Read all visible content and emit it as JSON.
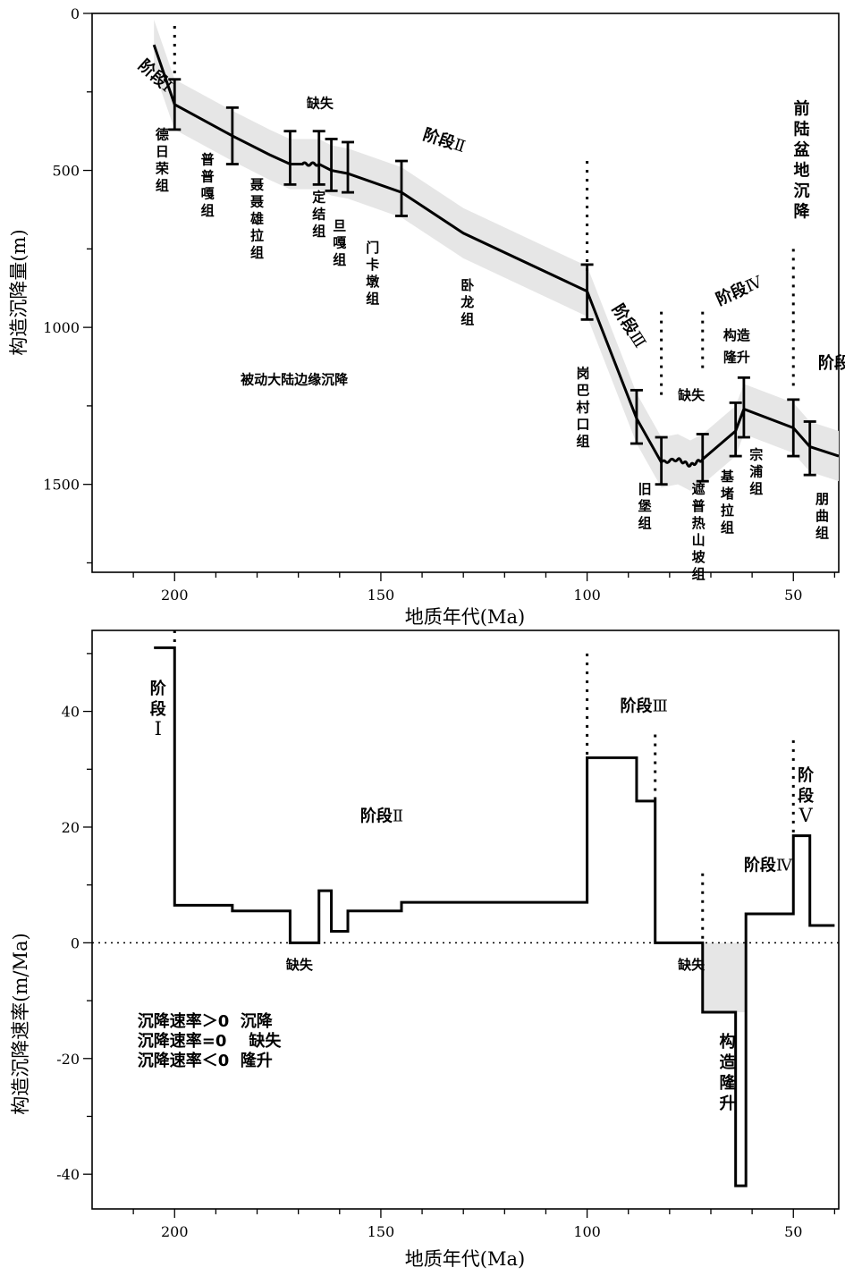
{
  "chart_data": [
    {
      "type": "line",
      "xlabel": "地质年代(Ma)",
      "ylabel": "构造沉降量(m)",
      "xlim": [
        220,
        39
      ],
      "ylim": [
        1780,
        0
      ],
      "x_ticks": [
        200,
        150,
        100,
        50
      ],
      "y_ticks": [
        0,
        500,
        1000,
        1500
      ],
      "series": [
        {
          "x": [
            205,
            200,
            186,
            177,
            172,
            169,
            165,
            162,
            158,
            145,
            130,
            100,
            88,
            82,
            78,
            75,
            72,
            64,
            62,
            50,
            46,
            39
          ],
          "y": [
            100,
            290,
            390,
            450,
            480,
            480,
            480,
            500,
            510,
            570,
            700,
            885,
            1290,
            1430,
            1420,
            1440,
            1420,
            1330,
            1260,
            1320,
            1380,
            1410
          ]
        }
      ],
      "error_bars": [
        {
          "x": 200,
          "low": 210,
          "high": 370
        },
        {
          "x": 186,
          "low": 300,
          "high": 480
        },
        {
          "x": 172,
          "low": 375,
          "high": 545
        },
        {
          "x": 165,
          "low": 375,
          "high": 545
        },
        {
          "x": 162,
          "low": 400,
          "high": 565
        },
        {
          "x": 158,
          "low": 410,
          "high": 570
        },
        {
          "x": 145,
          "low": 470,
          "high": 645
        },
        {
          "x": 100,
          "low": 800,
          "high": 975
        },
        {
          "x": 88,
          "low": 1200,
          "high": 1370
        },
        {
          "x": 82,
          "low": 1350,
          "high": 1500
        },
        {
          "x": 72,
          "low": 1340,
          "high": 1490
        },
        {
          "x": 64,
          "low": 1240,
          "high": 1410
        },
        {
          "x": 62,
          "low": 1160,
          "high": 1350
        },
        {
          "x": 50,
          "low": 1230,
          "high": 1410
        },
        {
          "x": 46,
          "low": 1300,
          "high": 1470
        }
      ],
      "dotted_lines": [
        {
          "x": 200,
          "y_top": 40,
          "y_bottom": 200
        },
        {
          "x": 100,
          "y_top": 470,
          "y_bottom": 830
        },
        {
          "x": 82,
          "y_top": 950,
          "y_bottom": 1230
        },
        {
          "x": 72,
          "y_top": 950,
          "y_bottom": 1130
        },
        {
          "x": 50,
          "y_top": 750,
          "y_bottom": 1200
        }
      ],
      "annotations": [
        {
          "text": "阶段Ⅰ",
          "x": 209,
          "y": 170,
          "rotate": 42
        },
        {
          "text": "阶段Ⅱ",
          "x": 140,
          "y": 400,
          "rotate": 18
        },
        {
          "text": "阶段Ⅲ",
          "x": 94,
          "y": 940,
          "rotate": 58
        },
        {
          "text": "阶段Ⅳ",
          "x": 68,
          "y": 930,
          "rotate": -24
        },
        {
          "text": "阶段Ⅴ",
          "x": 44,
          "y": 1130,
          "rotate": 0
        },
        {
          "text": "缺失",
          "x": 168,
          "y": 300,
          "rotate": 0
        },
        {
          "text": "缺失",
          "x": 78,
          "y": 1230,
          "rotate": 0
        },
        {
          "text": "被动大陆边缘沉降",
          "x": 184,
          "y": 1180,
          "rotate": 0
        },
        {
          "text": "构造",
          "x": 67,
          "y": 1040,
          "rotate": 0
        },
        {
          "text": "隆升",
          "x": 67,
          "y": 1110,
          "rotate": 0
        }
      ],
      "vertical_labels": [
        {
          "text": "德日荣组",
          "x": 203,
          "y": 400
        },
        {
          "text": "普普嘎组",
          "x": 192,
          "y": 480
        },
        {
          "text": "聂聂雄拉组",
          "x": 180,
          "y": 560
        },
        {
          "text": "定结组",
          "x": 165,
          "y": 600
        },
        {
          "text": "旦嘎组",
          "x": 160,
          "y": 690
        },
        {
          "text": "门卡墩组",
          "x": 152,
          "y": 760
        },
        {
          "text": "卧龙组",
          "x": 129,
          "y": 880
        },
        {
          "text": "岗巴村口组",
          "x": 101,
          "y": 1160
        },
        {
          "text": "旧堡组",
          "x": 86,
          "y": 1530
        },
        {
          "text": "遮普热山坡组",
          "x": 73,
          "y": 1530
        },
        {
          "text": "基堵拉组",
          "x": 66,
          "y": 1490
        },
        {
          "text": "宗浦组",
          "x": 59,
          "y": 1420
        },
        {
          "text": "朋曲组",
          "x": 43,
          "y": 1560
        },
        {
          "text": "前陆盆地沉降",
          "x": 48,
          "y": 320
        }
      ]
    },
    {
      "type": "line",
      "xlabel": "地质年代(Ma)",
      "ylabel": "构造沉降速率(m/Ma)",
      "xlim": [
        220,
        39
      ],
      "ylim": [
        -46,
        54
      ],
      "x_ticks": [
        200,
        150,
        100,
        50
      ],
      "y_ticks": [
        -40,
        -20,
        0,
        20,
        40
      ],
      "series": [
        {
          "x": [
            205,
            200,
            200,
            186,
            186,
            172,
            172,
            165,
            165,
            162,
            162,
            158,
            158,
            145,
            145,
            100,
            100,
            88,
            88,
            83.5,
            83.5,
            72,
            72,
            64,
            64,
            61.5,
            61.5,
            50,
            50,
            46,
            46,
            40
          ],
          "y": [
            51,
            51,
            6.5,
            6.5,
            5.5,
            5.5,
            0,
            0,
            9,
            9,
            2,
            2,
            5.5,
            5.5,
            7,
            7,
            32,
            32,
            24.5,
            24.5,
            0,
            0,
            -12,
            -12,
            -42,
            -42,
            5,
            5,
            18.5,
            18.5,
            3,
            3
          ]
        }
      ],
      "shaded_region": {
        "x_from": 72,
        "x_to": 61.5,
        "y_top": 0,
        "y_bottom": -12
      },
      "dotted_lines": [
        {
          "x": 200,
          "y_top": 54,
          "y_bottom": 51
        },
        {
          "x": 100,
          "y_top": 50,
          "y_bottom": 32
        },
        {
          "x": 83.5,
          "y_top": 36,
          "y_bottom": 24.5
        },
        {
          "x": 72,
          "y_top": 12,
          "y_bottom": 0
        },
        {
          "x": 50,
          "y_top": 35,
          "y_bottom": 18.5
        }
      ],
      "annotations": [
        {
          "text": "阶段Ⅱ",
          "x": 155,
          "y": 21,
          "rotate": 0
        },
        {
          "text": "阶段Ⅲ",
          "x": 92,
          "y": 40,
          "rotate": 0
        },
        {
          "text": "阶段Ⅳ",
          "x": 62,
          "y": 12.5,
          "rotate": 0
        },
        {
          "text": "缺失",
          "x": 173,
          "y": -4.6,
          "rotate": 0
        },
        {
          "text": "缺失",
          "x": 78,
          "y": -4.6,
          "rotate": 0
        }
      ],
      "stack_labels": [
        {
          "lines": [
            "阶",
            "段",
            "Ⅰ"
          ],
          "x": 204,
          "y": 43
        },
        {
          "lines": [
            "阶",
            "段",
            "Ⅴ"
          ],
          "x": 47,
          "y": 28
        },
        {
          "lines": [
            "构",
            "造",
            "隆",
            "升"
          ],
          "x": 66,
          "y": -18
        }
      ],
      "legend_lines": [
        "沉降速率＞0  沉降",
        "沉降速率=0    缺失",
        "沉降速率＜0  隆升"
      ],
      "legend_position": {
        "x": 209,
        "y": -14.5
      }
    }
  ]
}
